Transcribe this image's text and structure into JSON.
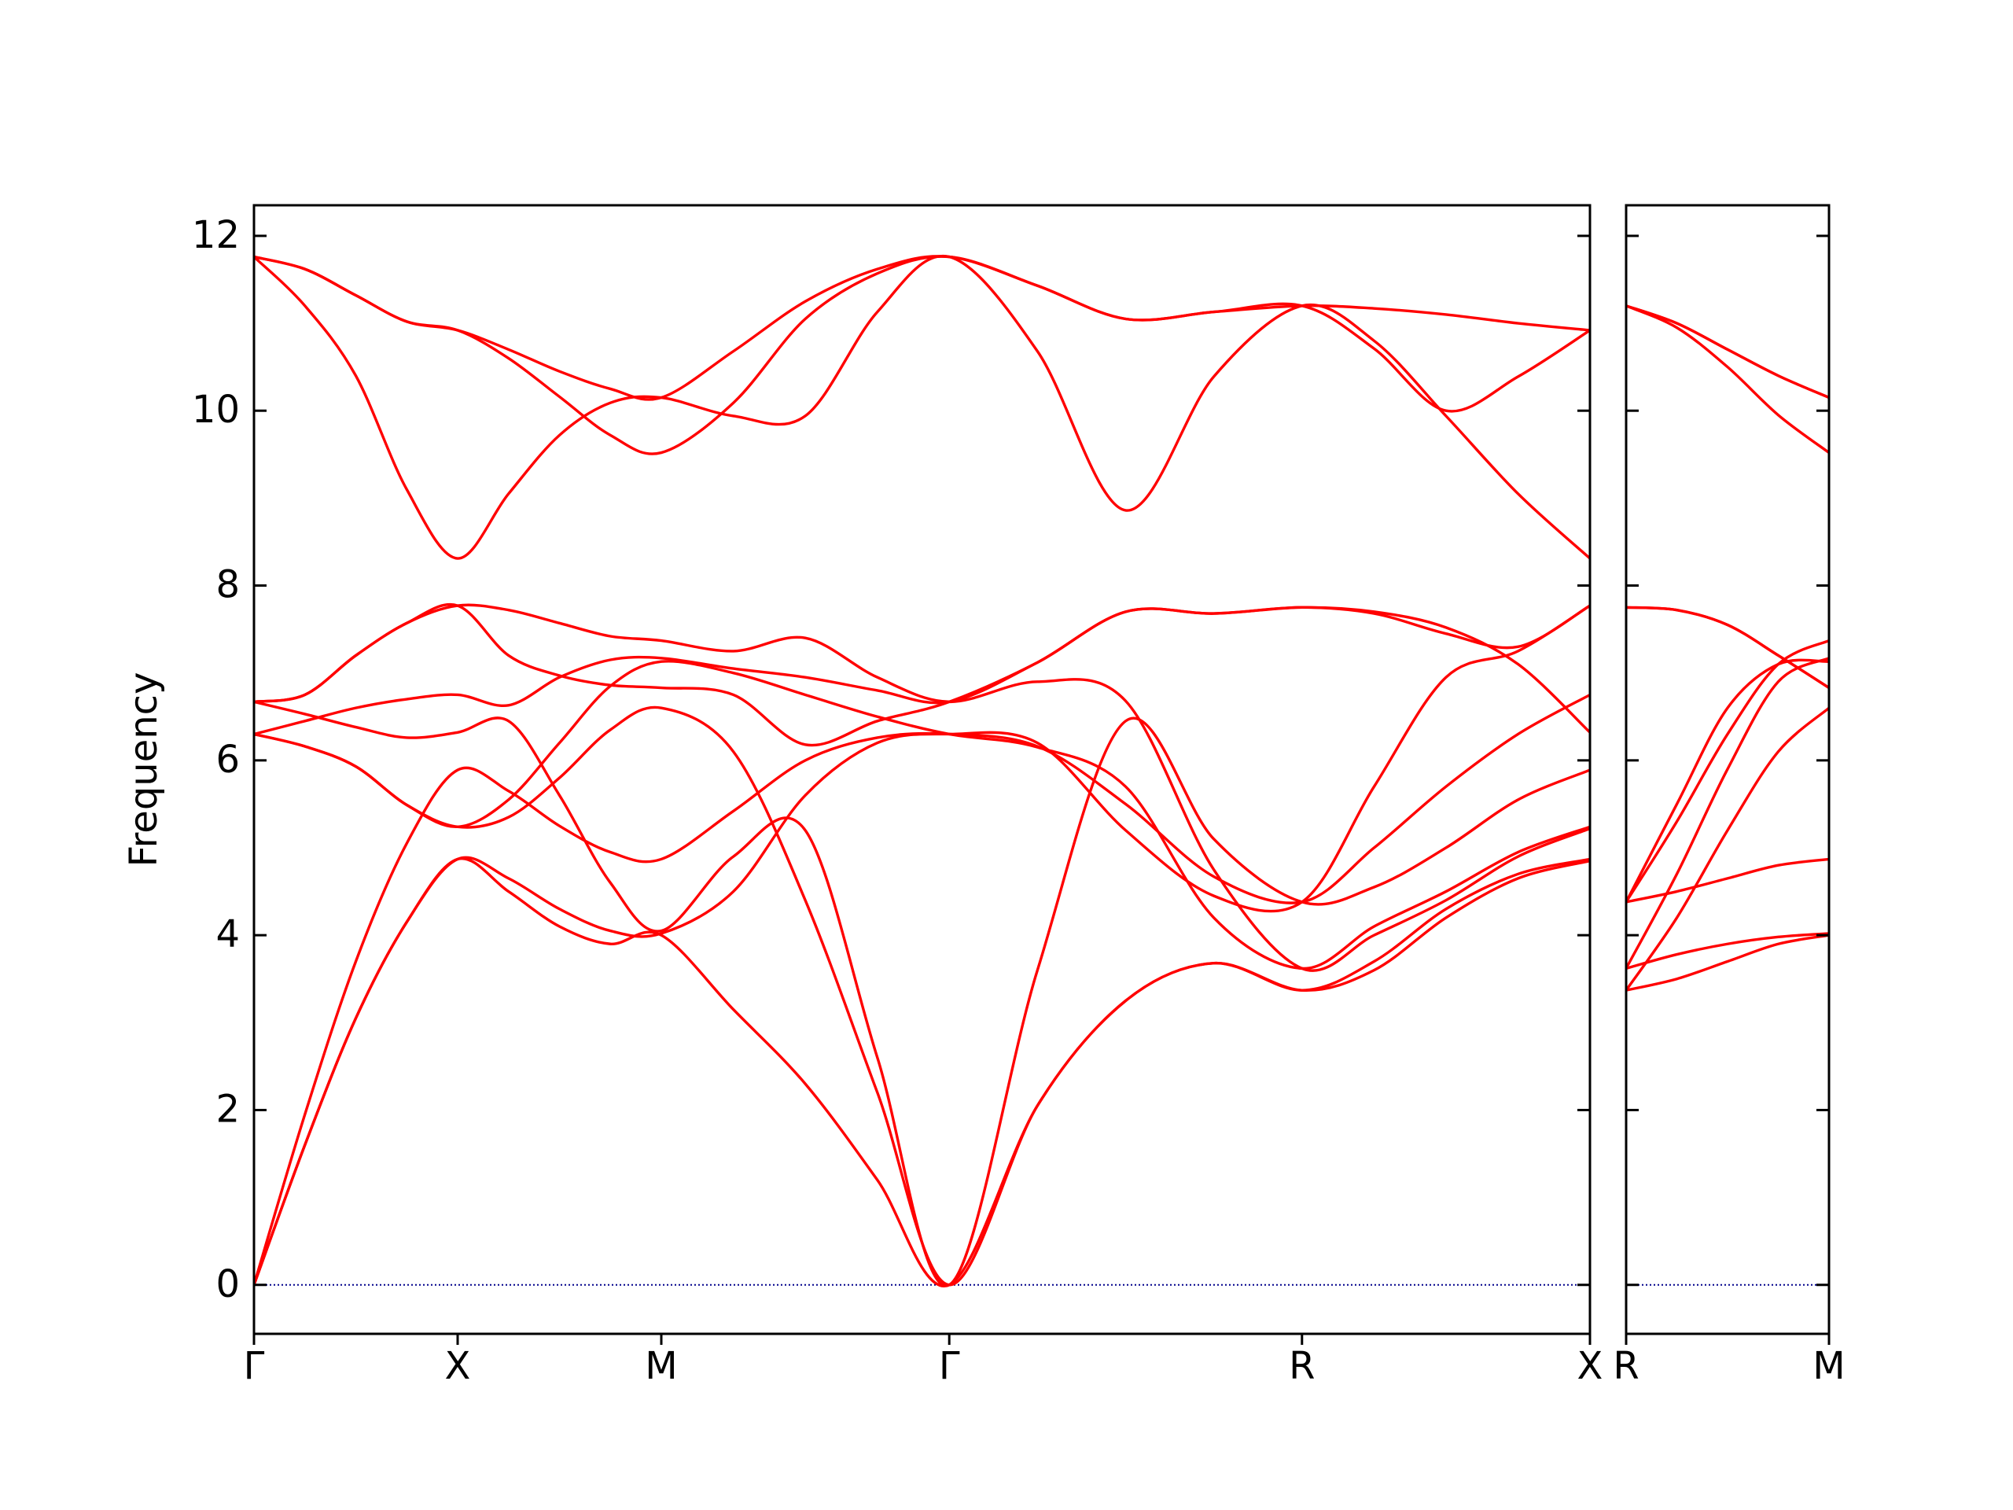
{
  "chart_data": [
    {
      "type": "line",
      "ylabel": "Frequency",
      "x": [
        0,
        0.25,
        0.5,
        0.75,
        1,
        1.25,
        1.5,
        1.75,
        2,
        2.354,
        2.707,
        3.061,
        3.414,
        3.847,
        4.28,
        4.713,
        5.146,
        5.5,
        5.853,
        6.207,
        6.56
      ],
      "xlim": [
        0,
        6.56
      ],
      "xticks": [
        {
          "value": 0,
          "label": "Γ"
        },
        {
          "value": 1,
          "label": "X"
        },
        {
          "value": 2,
          "label": "M"
        },
        {
          "value": 3.414,
          "label": "Γ"
        },
        {
          "value": 5.146,
          "label": "R"
        },
        {
          "value": 6.56,
          "label": "X"
        }
      ],
      "ylim": [
        -0.56,
        12.35
      ],
      "yticks": [
        0,
        2,
        4,
        6,
        8,
        10,
        12
      ],
      "ytick_labels": true,
      "zero_line": {
        "value": 0,
        "color": "#00008b"
      },
      "color": "#ff0000",
      "series": [
        {
          "values": [
            0,
            1.6,
            3.05,
            4.15,
            4.87,
            4.65,
            4.3,
            4.05,
            4.02,
            4.5,
            5.6,
            6.2,
            6.3,
            6.2,
            5.2,
            4.45,
            4.38,
            5.7,
            6.95,
            7.25,
            7.77
          ]
        },
        {
          "values": [
            0,
            1.6,
            3.05,
            4.15,
            4.87,
            4.5,
            4.1,
            3.9,
            4.0,
            3.15,
            2.3,
            1.2,
            0,
            2.05,
            3.25,
            3.68,
            3.37,
            3.7,
            4.3,
            4.7,
            4.87
          ]
        },
        {
          "values": [
            0,
            1.95,
            3.7,
            5.05,
            5.89,
            5.65,
            5.25,
            4.95,
            4.87,
            5.42,
            6.0,
            6.26,
            6.3,
            6.16,
            5.5,
            4.67,
            4.38,
            5.0,
            5.7,
            6.3,
            6.75
          ]
        },
        {
          "values": [
            6.3,
            6.45,
            6.6,
            6.7,
            6.75,
            6.63,
            6.95,
            7.15,
            7.17,
            7.05,
            6.95,
            6.8,
            6.67,
            7.12,
            7.7,
            7.68,
            7.75,
            7.7,
            7.52,
            7.1,
            6.32
          ]
        },
        {
          "values": [
            6.3,
            6.16,
            5.93,
            5.49,
            5.24,
            5.55,
            6.2,
            6.85,
            7.13,
            7.0,
            6.75,
            6.5,
            6.3,
            6.15,
            5.7,
            4.2,
            3.62,
            4.1,
            4.5,
            4.95,
            5.24
          ]
        },
        {
          "values": [
            6.3,
            6.16,
            5.93,
            5.49,
            5.24,
            5.35,
            5.8,
            6.35,
            6.6,
            6.1,
            4.4,
            2.2,
            0,
            2.05,
            3.25,
            3.68,
            3.37,
            3.6,
            4.2,
            4.65,
            4.85
          ]
        },
        {
          "values": [
            6.67,
            6.75,
            7.2,
            7.57,
            7.77,
            7.2,
            6.97,
            6.86,
            6.83,
            6.75,
            6.18,
            6.45,
            6.67,
            7.12,
            7.7,
            7.68,
            7.75,
            7.68,
            7.45,
            7.3,
            7.77
          ]
        },
        {
          "values": [
            6.67,
            6.75,
            7.2,
            7.57,
            7.77,
            7.72,
            7.57,
            7.42,
            7.37,
            7.25,
            7.4,
            6.95,
            6.67,
            6.9,
            6.68,
            4.75,
            3.62,
            4.0,
            4.4,
            4.9,
            5.22
          ]
        },
        {
          "values": [
            6.67,
            6.53,
            6.38,
            6.26,
            6.32,
            6.45,
            5.6,
            4.6,
            4.05,
            4.9,
            5.2,
            2.6,
            0,
            3.6,
            6.45,
            5.1,
            4.38,
            4.55,
            5.0,
            5.55,
            5.89
          ]
        },
        {
          "values": [
            11.76,
            11.62,
            11.32,
            11.02,
            10.92,
            10.7,
            10.45,
            10.25,
            10.15,
            10.68,
            11.25,
            11.62,
            11.76,
            11.43,
            11.05,
            11.13,
            11.2,
            11.17,
            11.1,
            11.0,
            10.92
          ]
        },
        {
          "values": [
            11.76,
            11.62,
            11.32,
            11.02,
            10.92,
            10.6,
            10.16,
            9.72,
            9.52,
            10.09,
            11.05,
            11.57,
            11.76,
            11.43,
            11.05,
            11.13,
            11.2,
            10.71,
            10.0,
            10.39,
            10.92
          ]
        },
        {
          "values": [
            11.76,
            11.2,
            10.4,
            9.1,
            8.31,
            9.05,
            9.72,
            10.09,
            10.15,
            9.94,
            9.94,
            11.13,
            11.76,
            10.68,
            8.86,
            10.39,
            11.2,
            10.8,
            9.94,
            9.05,
            8.31
          ]
        }
      ]
    },
    {
      "type": "line",
      "x": [
        0,
        0.25,
        0.5,
        0.75,
        1
      ],
      "xlim": [
        0,
        1
      ],
      "xticks": [
        {
          "value": 0,
          "label": "R"
        },
        {
          "value": 1,
          "label": "M"
        }
      ],
      "ylim": [
        -0.56,
        12.35
      ],
      "yticks": [
        0,
        2,
        4,
        6,
        8,
        10,
        12
      ],
      "ytick_labels": false,
      "zero_line": {
        "value": 0,
        "color": "#00008b"
      },
      "color": "#ff0000",
      "series": [
        {
          "values": [
            11.2,
            11.0,
            10.7,
            10.4,
            10.15
          ]
        },
        {
          "values": [
            11.2,
            11.0,
            10.7,
            10.4,
            10.15
          ]
        },
        {
          "values": [
            11.2,
            10.95,
            10.5,
            9.95,
            9.52
          ]
        },
        {
          "values": [
            7.75,
            7.72,
            7.55,
            7.2,
            6.83
          ]
        },
        {
          "values": [
            7.75,
            7.72,
            7.55,
            7.2,
            6.83
          ]
        },
        {
          "values": [
            4.38,
            4.5,
            4.65,
            4.8,
            4.87
          ]
        },
        {
          "values": [
            4.38,
            5.3,
            6.3,
            7.1,
            7.37
          ]
        },
        {
          "values": [
            4.38,
            5.5,
            6.6,
            7.1,
            7.13
          ]
        },
        {
          "values": [
            3.62,
            4.7,
            5.9,
            6.9,
            7.17
          ]
        },
        {
          "values": [
            3.62,
            3.78,
            3.9,
            3.98,
            4.02
          ]
        },
        {
          "values": [
            3.37,
            4.2,
            5.2,
            6.1,
            6.6
          ]
        },
        {
          "values": [
            3.37,
            3.5,
            3.7,
            3.9,
            4.0
          ]
        }
      ]
    }
  ]
}
